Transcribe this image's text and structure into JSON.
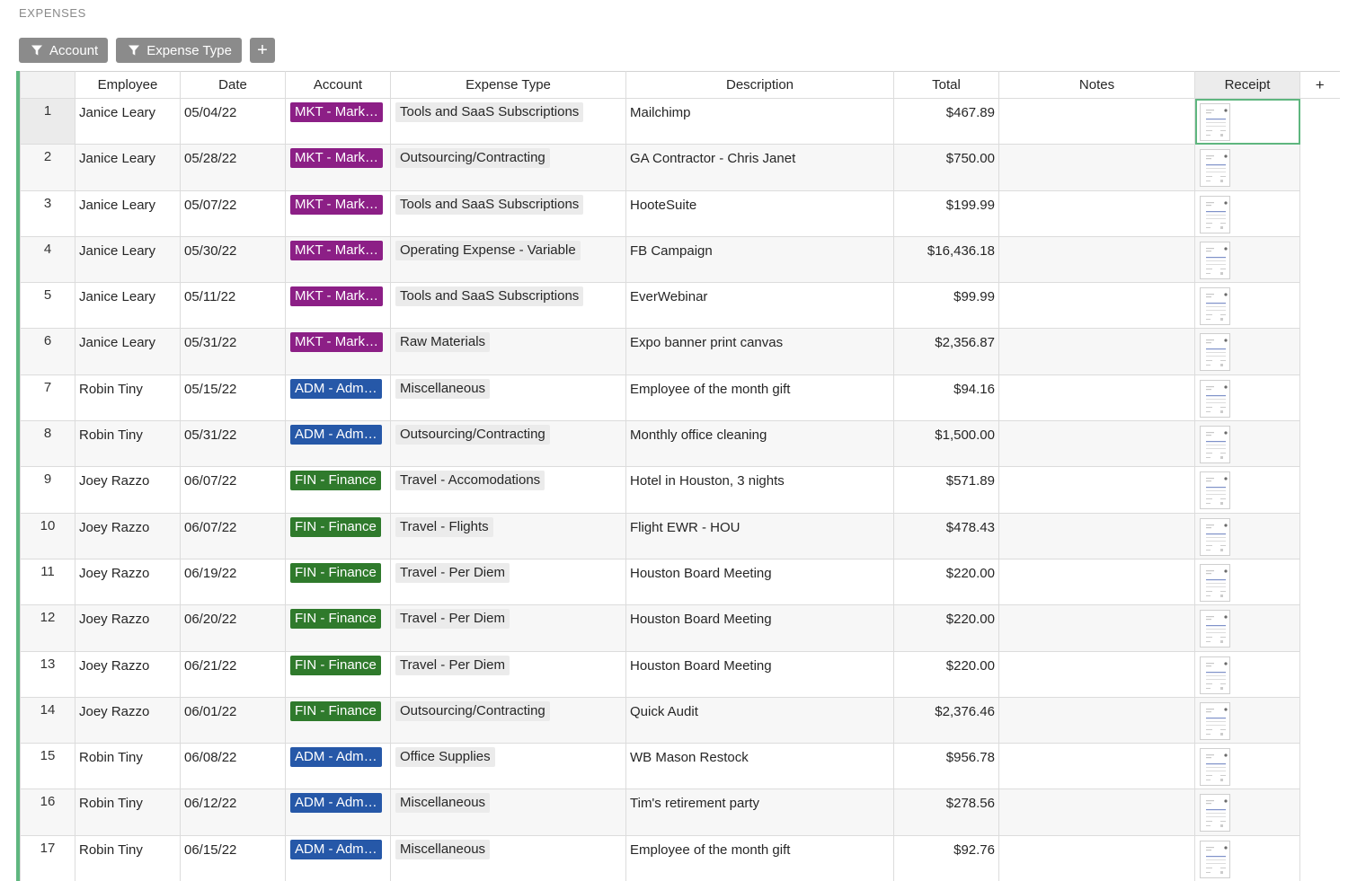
{
  "section_title": "EXPENSES",
  "filters": [
    {
      "label": "Account"
    },
    {
      "label": "Expense Type"
    }
  ],
  "add_filter_label": "+",
  "columns": {
    "employee": "Employee",
    "date": "Date",
    "account": "Account",
    "expense_type": "Expense Type",
    "description": "Description",
    "total": "Total",
    "notes": "Notes",
    "receipt": "Receipt",
    "add_column": "+"
  },
  "colors": {
    "accent": "#5fb67f",
    "account_mkt": "#8c1f86",
    "account_adm": "#2658a8",
    "account_fin": "#2f7a2c",
    "button_gray": "#8b8b8b"
  },
  "rows": [
    {
      "n": "1",
      "employee": "Janice Leary",
      "date": "05/04/22",
      "account": "MKT - Mark…",
      "acct": "mkt",
      "type": "Tools and SaaS Subscriptions",
      "description": "Mailchimp",
      "total": "$467.89",
      "notes": ""
    },
    {
      "n": "2",
      "employee": "Janice Leary",
      "date": "05/28/22",
      "account": "MKT - Mark…",
      "acct": "mkt",
      "type": "Outsourcing/Contracting",
      "description": "GA Contractor - Chris Janet",
      "total": "$750.00",
      "notes": ""
    },
    {
      "n": "3",
      "employee": "Janice Leary",
      "date": "05/07/22",
      "account": "MKT - Mark…",
      "acct": "mkt",
      "type": "Tools and SaaS Subscriptions",
      "description": "HooteSuite",
      "total": "$199.99",
      "notes": ""
    },
    {
      "n": "4",
      "employee": "Janice Leary",
      "date": "05/30/22",
      "account": "MKT - Mark…",
      "acct": "mkt",
      "type": "Operating Expense - Variable",
      "description": "FB Campaign",
      "total": "$16,436.18",
      "notes": ""
    },
    {
      "n": "5",
      "employee": "Janice Leary",
      "date": "05/11/22",
      "account": "MKT - Mark…",
      "acct": "mkt",
      "type": "Tools and SaaS Subscriptions",
      "description": "EverWebinar",
      "total": "$99.99",
      "notes": ""
    },
    {
      "n": "6",
      "employee": "Janice Leary",
      "date": "05/31/22",
      "account": "MKT - Mark…",
      "acct": "mkt",
      "type": "Raw Materials",
      "description": "Expo banner print canvas",
      "total": "$2,356.87",
      "notes": ""
    },
    {
      "n": "7",
      "employee": "Robin Tiny",
      "date": "05/15/22",
      "account": "ADM - Adm…",
      "acct": "adm",
      "type": "Miscellaneous",
      "description": "Employee of the month gift",
      "total": "$94.16",
      "notes": ""
    },
    {
      "n": "8",
      "employee": "Robin Tiny",
      "date": "05/31/22",
      "account": "ADM - Adm…",
      "acct": "adm",
      "type": "Outsourcing/Contracting",
      "description": "Monthly office cleaning",
      "total": "$1,500.00",
      "notes": ""
    },
    {
      "n": "9",
      "employee": "Joey Razzo",
      "date": "06/07/22",
      "account": "FIN - Finance",
      "acct": "fin",
      "type": "Travel - Accomodations",
      "description": "Hotel in Houston, 3 nights",
      "total": "$571.89",
      "notes": ""
    },
    {
      "n": "10",
      "employee": "Joey Razzo",
      "date": "06/07/22",
      "account": "FIN - Finance",
      "acct": "fin",
      "type": "Travel - Flights",
      "description": "Flight EWR - HOU",
      "total": "$478.43",
      "notes": ""
    },
    {
      "n": "11",
      "employee": "Joey Razzo",
      "date": "06/19/22",
      "account": "FIN - Finance",
      "acct": "fin",
      "type": "Travel - Per Diem",
      "description": "Houston Board Meeting",
      "total": "$220.00",
      "notes": ""
    },
    {
      "n": "12",
      "employee": "Joey Razzo",
      "date": "06/20/22",
      "account": "FIN - Finance",
      "acct": "fin",
      "type": "Travel - Per Diem",
      "description": "Houston Board Meeting",
      "total": "$220.00",
      "notes": ""
    },
    {
      "n": "13",
      "employee": "Joey Razzo",
      "date": "06/21/22",
      "account": "FIN - Finance",
      "acct": "fin",
      "type": "Travel - Per Diem",
      "description": "Houston Board Meeting",
      "total": "$220.00",
      "notes": ""
    },
    {
      "n": "14",
      "employee": "Joey Razzo",
      "date": "06/01/22",
      "account": "FIN - Finance",
      "acct": "fin",
      "type": "Outsourcing/Contracting",
      "description": "Quick Audit",
      "total": "$2,376.46",
      "notes": ""
    },
    {
      "n": "15",
      "employee": "Robin Tiny",
      "date": "06/08/22",
      "account": "ADM - Adm…",
      "acct": "adm",
      "type": "Office Supplies",
      "description": "WB Mason Restock",
      "total": "$956.78",
      "notes": ""
    },
    {
      "n": "16",
      "employee": "Robin Tiny",
      "date": "06/12/22",
      "account": "ADM - Adm…",
      "acct": "adm",
      "type": "Miscellaneous",
      "description": "Tim's retirement party",
      "total": "$278.56",
      "notes": ""
    },
    {
      "n": "17",
      "employee": "Robin Tiny",
      "date": "06/15/22",
      "account": "ADM - Adm…",
      "acct": "adm",
      "type": "Miscellaneous",
      "description": "Employee of the month gift",
      "total": "$92.76",
      "notes": ""
    }
  ]
}
